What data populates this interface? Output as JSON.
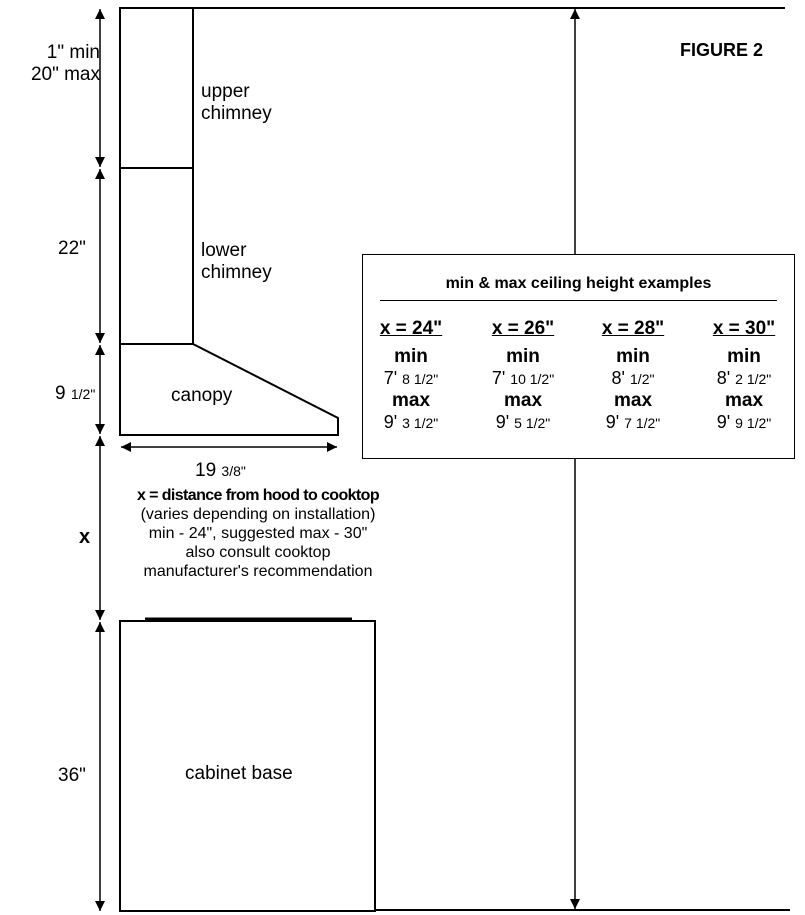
{
  "figure_title": "FIGURE 2",
  "upper_chimney": {
    "label_line1": "upper",
    "label_line2": "chimney",
    "dim_line1": "1\" min",
    "dim_line2": "20\" max"
  },
  "lower_chimney": {
    "label_line1": "lower",
    "label_line2": "chimney",
    "dim": "22\""
  },
  "canopy": {
    "label": "canopy",
    "height_whole": "9",
    "height_frac": "1/2\"",
    "width_whole": "19",
    "width_frac": "3/8\""
  },
  "x_section": {
    "symbol": "x",
    "title": "x = distance from hood to cooktop",
    "line2": "(varies depending on installation)",
    "line3": "min - 24\", suggested max - 30\"",
    "line4": "also consult cooktop",
    "line5": "manufacturer's recommendation"
  },
  "cabinet_base": {
    "label": "cabinet base",
    "dim": "36\""
  },
  "examples": {
    "title": "min & max ceiling height examples",
    "min_label": "min",
    "max_label": "max",
    "columns": [
      {
        "header": "x = 24\"",
        "min_ft": "7'",
        "min_in": "8 1/2\"",
        "max_ft": "9'",
        "max_in": "3 1/2\""
      },
      {
        "header": "x = 26\"",
        "min_ft": "7'",
        "min_in": "10 1/2\"",
        "max_ft": "9'",
        "max_in": "5 1/2\""
      },
      {
        "header": "x = 28\"",
        "min_ft": "8'",
        "min_in": "1/2\"",
        "max_ft": "9'",
        "max_in": "7 1/2\""
      },
      {
        "header": "x = 30\"",
        "min_ft": "8'",
        "min_in": "2 1/2\"",
        "max_ft": "9'",
        "max_in": "9 1/2\""
      }
    ]
  }
}
